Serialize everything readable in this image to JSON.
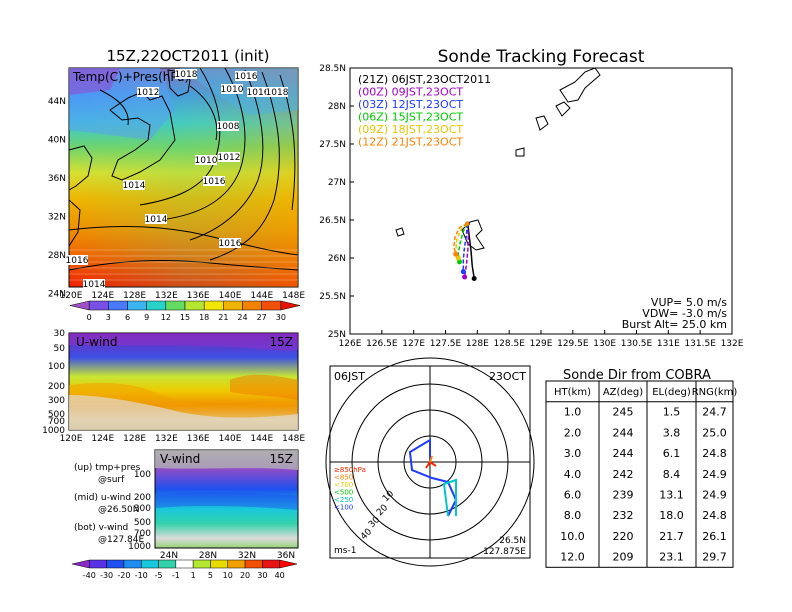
{
  "map": {
    "title": "15Z,22OCT2011 (init)",
    "label": "Temp(C)+Pres(hPa)",
    "y_ticks": [
      "44N",
      "40N",
      "36N",
      "32N",
      "28N",
      "24N"
    ],
    "x_ticks": [
      "120E",
      "124E",
      "128E",
      "132E",
      "136E",
      "140E",
      "144E",
      "148E"
    ],
    "isobar_labels": [
      "1018",
      "1016",
      "1012",
      "1010",
      "1016",
      "1018",
      "1008",
      "1010",
      "1012",
      "1014",
      "1016",
      "1014",
      "1016",
      "1016",
      "1014"
    ],
    "colorbar_ticks": [
      "0",
      "3",
      "6",
      "9",
      "12",
      "15",
      "18",
      "21",
      "24",
      "27",
      "30"
    ]
  },
  "uwind": {
    "label": "U-wind",
    "time": "15Z",
    "y_ticks": [
      "30",
      "50",
      "100",
      "200",
      "300",
      "500",
      "700",
      "1000"
    ],
    "x_ticks": [
      "120E",
      "124E",
      "128E",
      "132E",
      "136E",
      "140E",
      "144E",
      "148E"
    ]
  },
  "vwind": {
    "label": "V-wind",
    "time": "15Z",
    "y_ticks": [
      "100",
      "200",
      "300",
      "500",
      "700",
      "1000"
    ],
    "x_ticks": [
      "24N",
      "28N",
      "32N",
      "36N"
    ]
  },
  "notes": [
    [
      "(up) tmp+pres",
      "@surf"
    ],
    [
      "(mid) u-wind",
      "@26.50N"
    ],
    [
      "(bot) v-wind",
      "@127.84E"
    ]
  ],
  "wind_colorbar_ticks": [
    "-40",
    "-30",
    "-20",
    "-10",
    "-5",
    "-1",
    "1",
    "5",
    "10",
    "20",
    "30",
    "40"
  ],
  "forecast": {
    "title": "Sonde Tracking Forecast",
    "legend": [
      {
        "text": "(21Z) 06JST,23OCT2011",
        "color": "#000000"
      },
      {
        "text": "(00Z) 09JST,23OCT",
        "color": "#a000c8"
      },
      {
        "text": "(03Z) 12JST,23OCT",
        "color": "#1e3cff"
      },
      {
        "text": "(06Z) 15JST,23OCT",
        "color": "#00c800"
      },
      {
        "text": "(09Z) 18JST,23OCT",
        "color": "#e6c800"
      },
      {
        "text": "(12Z) 21JST,23OCT",
        "color": "#ff8200"
      }
    ],
    "y_ticks": [
      "28.5N",
      "28N",
      "27.5N",
      "27N",
      "26.5N",
      "26N",
      "25.5N",
      "25N"
    ],
    "x_ticks": [
      "126E",
      "126.5E",
      "127E",
      "127.5E",
      "128E",
      "128.5E",
      "129E",
      "129.5E",
      "130E",
      "130.5E",
      "131E",
      "131.5E",
      "132E"
    ],
    "params": [
      "VUP=  5.0  m/s",
      "VDW= -3.0  m/s",
      "Burst Alt=  25.0  km"
    ]
  },
  "chart_data": {
    "type": "line",
    "title": "Sonde Tracking Forecast",
    "xlabel": "",
    "ylabel": "",
    "xlim": [
      126,
      132
    ],
    "ylim": [
      25,
      28.5
    ],
    "series": [
      {
        "name": "(21Z) 06JST,23OCT2011",
        "color": "#000000",
        "x": [
          127.85,
          127.87,
          127.9,
          127.92,
          127.95
        ],
        "y": [
          26.45,
          26.3,
          26.1,
          25.9,
          25.73
        ]
      },
      {
        "name": "(00Z) 09JST,23OCT",
        "color": "#a000c8",
        "x": [
          127.84,
          127.86,
          127.85,
          127.83,
          127.8
        ],
        "y": [
          26.45,
          26.3,
          26.1,
          25.92,
          25.75
        ]
      },
      {
        "name": "(03Z) 12JST,23OCT",
        "color": "#1e3cff",
        "x": [
          127.84,
          127.83,
          127.8,
          127.78,
          127.78
        ],
        "y": [
          26.45,
          26.3,
          26.15,
          25.98,
          25.82
        ]
      },
      {
        "name": "(06Z) 15JST,23OCT",
        "color": "#00c800",
        "x": [
          127.84,
          127.78,
          127.73,
          127.7,
          127.72
        ],
        "y": [
          26.45,
          26.35,
          26.2,
          26.05,
          25.95
        ]
      },
      {
        "name": "(09Z) 18JST,23OCT",
        "color": "#e6c800",
        "x": [
          127.84,
          127.75,
          127.68,
          127.66,
          127.7
        ],
        "y": [
          26.45,
          26.38,
          26.25,
          26.1,
          26.0
        ]
      },
      {
        "name": "(12Z) 21JST,23OCT",
        "color": "#ff8200",
        "x": [
          127.84,
          127.72,
          127.65,
          127.63,
          127.66
        ],
        "y": [
          26.45,
          26.4,
          26.28,
          26.15,
          26.05
        ]
      }
    ]
  },
  "polar": {
    "time": "06JST",
    "date": "23OCT",
    "ring_labels": [
      "10",
      "20",
      "30",
      "40"
    ],
    "legend": [
      {
        "text": "≥850hPa",
        "color": "#ff2800"
      },
      {
        "text": "<850",
        "color": "#ff8200"
      },
      {
        "text": "<700",
        "color": "#e6c800"
      },
      {
        "text": "<500",
        "color": "#00c800"
      },
      {
        "text": "<250",
        "color": "#00c8c8"
      },
      {
        "text": "<100",
        "color": "#1e3cff"
      }
    ],
    "unit": "ms-1",
    "loc1": "26.5N",
    "loc2": "127.875E"
  },
  "table": {
    "title": "Sonde Dir from COBRA",
    "headers": [
      "HT(km)",
      "AZ(deg)",
      "EL(deg)",
      "RNG(km)"
    ],
    "rows": [
      [
        "1.0",
        "245",
        "1.5",
        "24.7"
      ],
      [
        "2.0",
        "244",
        "3.8",
        "25.0"
      ],
      [
        "3.0",
        "244",
        "6.1",
        "24.8"
      ],
      [
        "4.0",
        "242",
        "8.4",
        "24.9"
      ],
      [
        "6.0",
        "239",
        "13.1",
        "24.9"
      ],
      [
        "8.0",
        "232",
        "18.0",
        "24.8"
      ],
      [
        "10.0",
        "220",
        "21.7",
        "26.1"
      ],
      [
        "12.0",
        "209",
        "23.1",
        "29.7"
      ]
    ]
  }
}
